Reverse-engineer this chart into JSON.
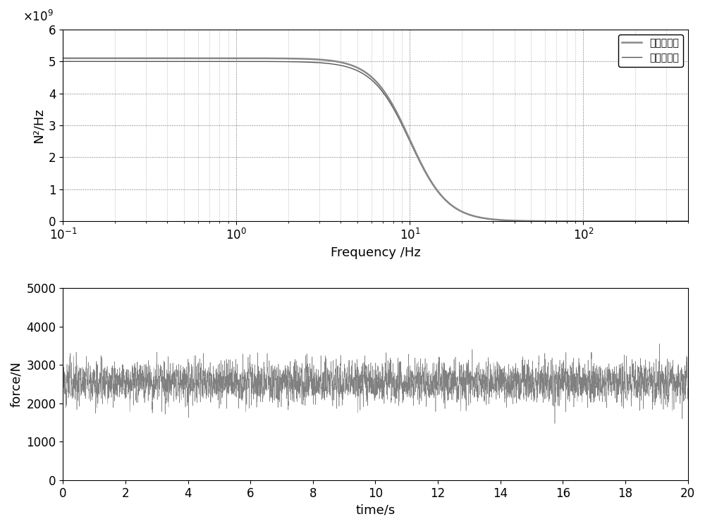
{
  "top_plot": {
    "xlabel": "Frequency /Hz",
    "ylabel": "N²/Hz",
    "xlim": [
      0.1,
      400
    ],
    "ylim": [
      0,
      6000000000.0
    ],
    "yticks": [
      0,
      1000000000.0,
      2000000000.0,
      3000000000.0,
      4000000000.0,
      5000000000.0,
      6000000000.0
    ],
    "ytick_labels": [
      "0",
      "1",
      "2",
      "3",
      "4",
      "5",
      "6"
    ],
    "legend_labels": [
      "目标反应谱",
      "计算反应谱"
    ],
    "S0_target": 5100000000.0,
    "S0_calc": 5000000000.0,
    "fc_target": 10.0,
    "fc_calc": 10.0,
    "n_target": 2.0,
    "n_calc": 2.0,
    "color_target": "#888888",
    "color_calc": "#555555",
    "lw_target": 1.8,
    "lw_calc": 1.0
  },
  "bottom_plot": {
    "xlabel": "time/s",
    "ylabel": "force/N",
    "xlim": [
      0,
      20
    ],
    "ylim": [
      0,
      5000
    ],
    "yticks": [
      0,
      1000,
      2000,
      3000,
      4000,
      5000
    ],
    "xticks": [
      0,
      2,
      4,
      6,
      8,
      10,
      12,
      14,
      16,
      18,
      20
    ],
    "mean_force": 2550,
    "std_force": 300,
    "line_color": "#808080",
    "random_seed": 12345,
    "n_points": 8000
  },
  "bg_color": "#ffffff",
  "font_size": 13,
  "tick_font_size": 12
}
